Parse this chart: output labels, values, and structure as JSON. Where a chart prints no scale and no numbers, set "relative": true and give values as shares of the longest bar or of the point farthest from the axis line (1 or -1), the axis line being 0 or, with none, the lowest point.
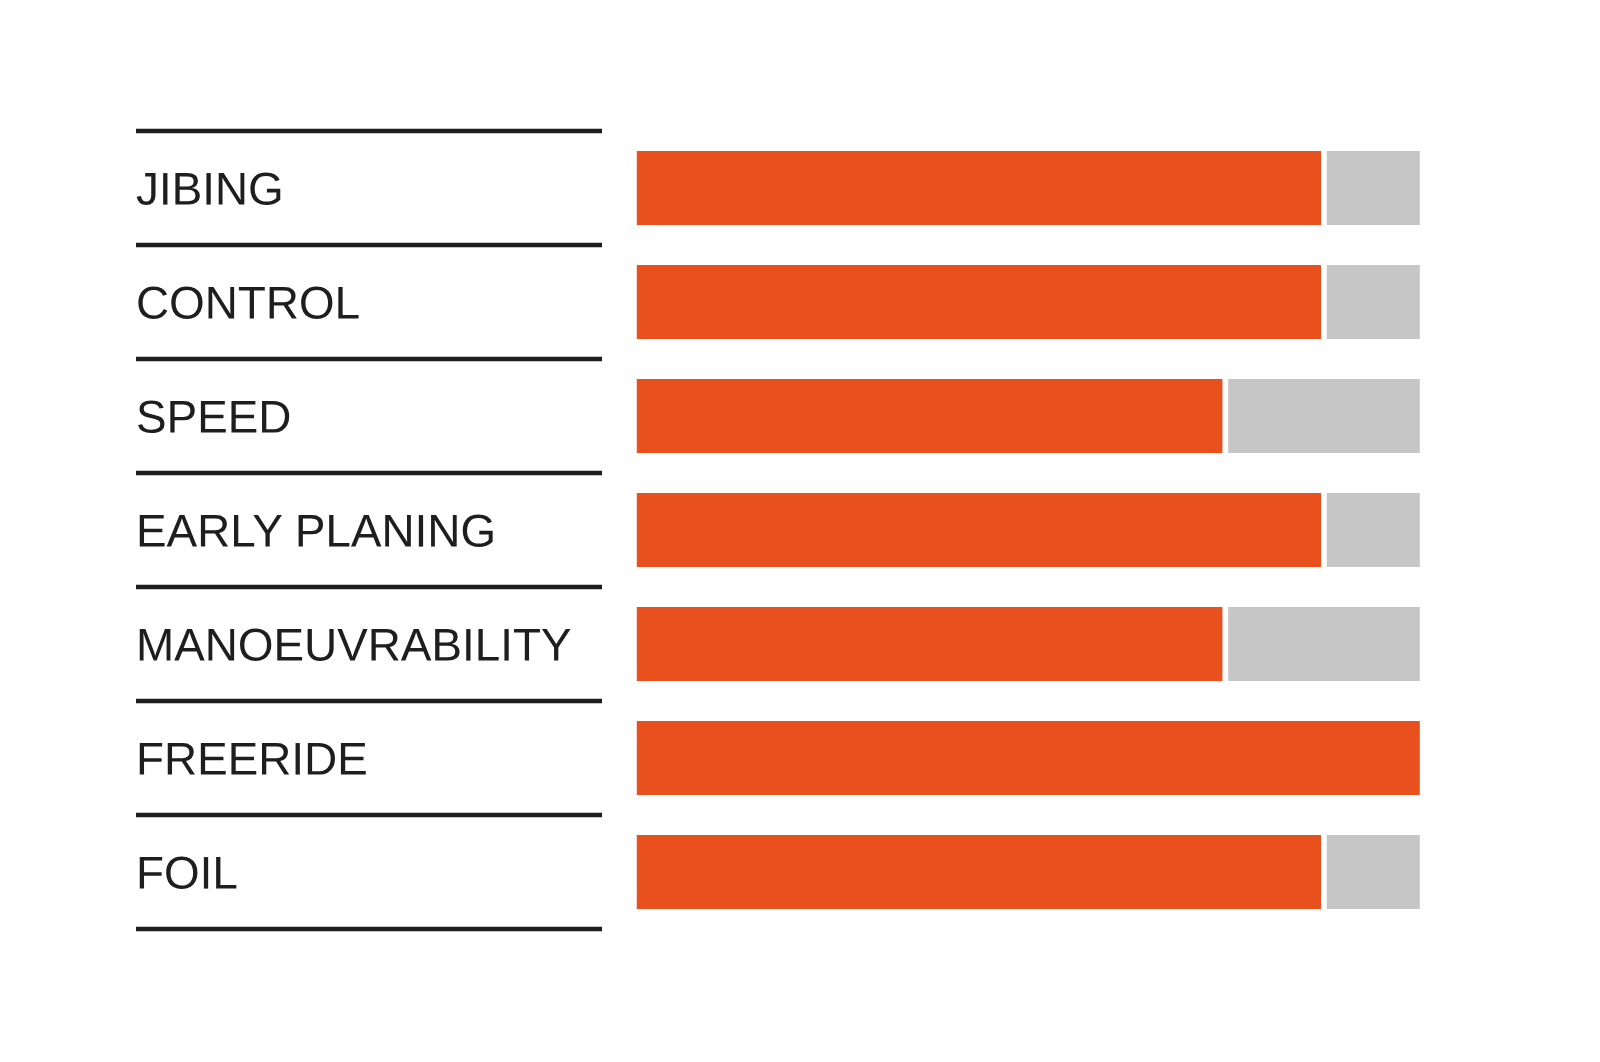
{
  "chart_data": {
    "type": "bar",
    "orientation": "horizontal",
    "stacked": true,
    "relative": true,
    "categories": [
      "JIBING",
      "CONTROL",
      "SPEED",
      "EARLY PLANING",
      "MANOEUVRABILITY",
      "FREERIDE",
      "FOIL"
    ],
    "series": [
      {
        "color": "#e8501e",
        "values": [
          0.875,
          0.875,
          0.75,
          0.875,
          0.75,
          1,
          0.875
        ]
      },
      {
        "color": "#c6c6c6",
        "values": [
          0.125,
          0.125,
          0.25,
          0.125,
          0.25,
          null,
          0.125
        ]
      }
    ]
  }
}
